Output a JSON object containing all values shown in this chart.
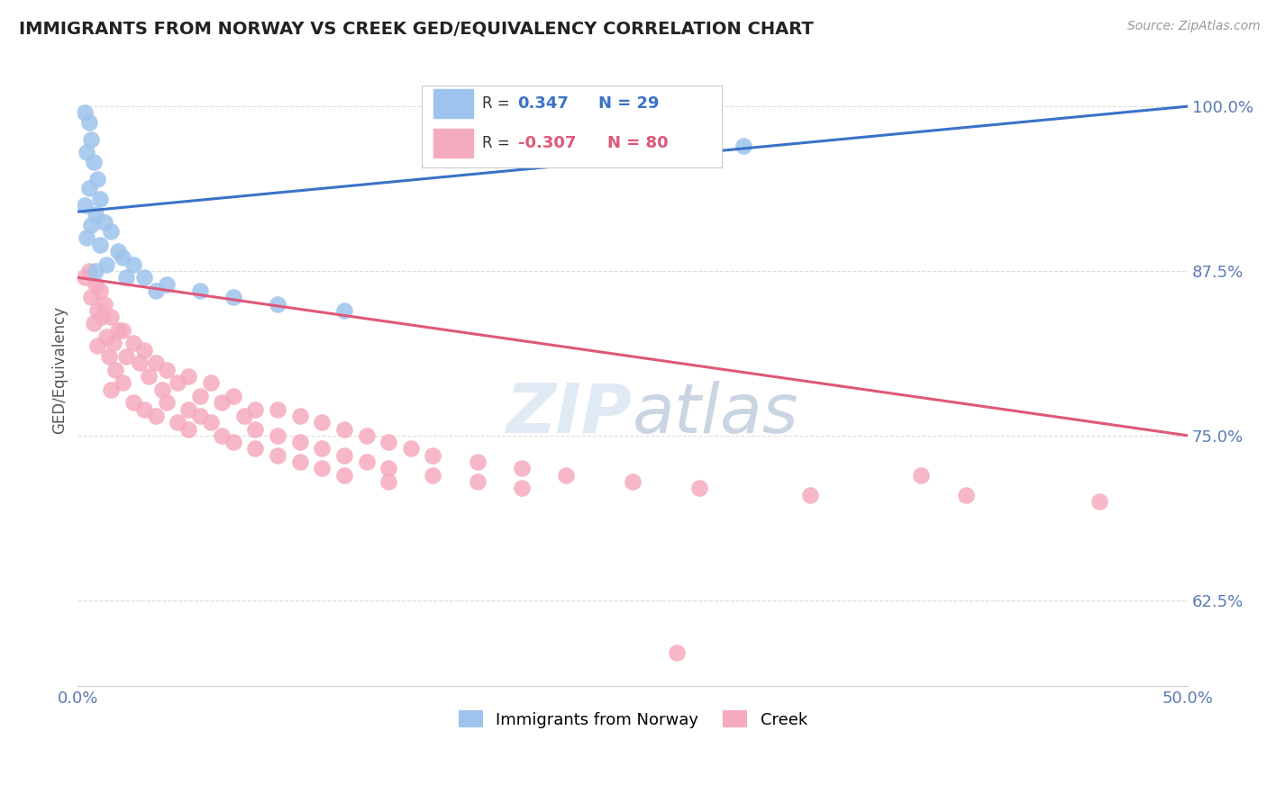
{
  "title": "IMMIGRANTS FROM NORWAY VS CREEK GED/EQUIVALENCY CORRELATION CHART",
  "source": "Source: ZipAtlas.com",
  "ylabel": "GED/Equivalency",
  "xlim": [
    0.0,
    50.0
  ],
  "ylim": [
    56.0,
    104.0
  ],
  "yticks": [
    62.5,
    75.0,
    87.5,
    100.0
  ],
  "ytick_labels": [
    "62.5%",
    "75.0%",
    "87.5%",
    "100.0%"
  ],
  "legend_r_norway": "0.347",
  "legend_n_norway": "29",
  "legend_r_creek": "-0.307",
  "legend_n_creek": "80",
  "norway_color": "#9ec4ed",
  "creek_color": "#f5abbe",
  "norway_line_color": "#3a72c8",
  "creek_line_color": "#e05878",
  "title_color": "#222222",
  "axis_label_color": "#5a7ab5",
  "norway_points": [
    [
      0.3,
      99.5
    ],
    [
      0.5,
      98.8
    ],
    [
      0.6,
      97.5
    ],
    [
      0.4,
      96.5
    ],
    [
      0.7,
      95.8
    ],
    [
      0.9,
      94.5
    ],
    [
      0.5,
      93.8
    ],
    [
      1.0,
      93.0
    ],
    [
      0.3,
      92.5
    ],
    [
      0.8,
      91.8
    ],
    [
      1.2,
      91.2
    ],
    [
      0.6,
      91.0
    ],
    [
      1.5,
      90.5
    ],
    [
      0.4,
      90.0
    ],
    [
      1.0,
      89.5
    ],
    [
      1.8,
      89.0
    ],
    [
      2.0,
      88.5
    ],
    [
      1.3,
      88.0
    ],
    [
      2.5,
      88.0
    ],
    [
      0.8,
      87.5
    ],
    [
      3.0,
      87.0
    ],
    [
      2.2,
      87.0
    ],
    [
      4.0,
      86.5
    ],
    [
      3.5,
      86.0
    ],
    [
      5.5,
      86.0
    ],
    [
      7.0,
      85.5
    ],
    [
      9.0,
      85.0
    ],
    [
      12.0,
      84.5
    ],
    [
      30.0,
      97.0
    ]
  ],
  "creek_points": [
    [
      0.5,
      87.5
    ],
    [
      0.3,
      87.0
    ],
    [
      0.8,
      86.5
    ],
    [
      1.0,
      86.0
    ],
    [
      0.6,
      85.5
    ],
    [
      1.2,
      85.0
    ],
    [
      0.9,
      84.5
    ],
    [
      1.5,
      84.0
    ],
    [
      1.1,
      84.0
    ],
    [
      0.7,
      83.5
    ],
    [
      1.8,
      83.0
    ],
    [
      2.0,
      83.0
    ],
    [
      1.3,
      82.5
    ],
    [
      2.5,
      82.0
    ],
    [
      1.6,
      82.0
    ],
    [
      0.9,
      81.8
    ],
    [
      3.0,
      81.5
    ],
    [
      2.2,
      81.0
    ],
    [
      1.4,
      81.0
    ],
    [
      3.5,
      80.5
    ],
    [
      2.8,
      80.5
    ],
    [
      4.0,
      80.0
    ],
    [
      1.7,
      80.0
    ],
    [
      5.0,
      79.5
    ],
    [
      3.2,
      79.5
    ],
    [
      2.0,
      79.0
    ],
    [
      4.5,
      79.0
    ],
    [
      6.0,
      79.0
    ],
    [
      1.5,
      78.5
    ],
    [
      3.8,
      78.5
    ],
    [
      5.5,
      78.0
    ],
    [
      7.0,
      78.0
    ],
    [
      2.5,
      77.5
    ],
    [
      4.0,
      77.5
    ],
    [
      6.5,
      77.5
    ],
    [
      8.0,
      77.0
    ],
    [
      3.0,
      77.0
    ],
    [
      5.0,
      77.0
    ],
    [
      9.0,
      77.0
    ],
    [
      3.5,
      76.5
    ],
    [
      5.5,
      76.5
    ],
    [
      7.5,
      76.5
    ],
    [
      10.0,
      76.5
    ],
    [
      4.5,
      76.0
    ],
    [
      6.0,
      76.0
    ],
    [
      11.0,
      76.0
    ],
    [
      5.0,
      75.5
    ],
    [
      8.0,
      75.5
    ],
    [
      12.0,
      75.5
    ],
    [
      6.5,
      75.0
    ],
    [
      9.0,
      75.0
    ],
    [
      13.0,
      75.0
    ],
    [
      7.0,
      74.5
    ],
    [
      10.0,
      74.5
    ],
    [
      14.0,
      74.5
    ],
    [
      8.0,
      74.0
    ],
    [
      11.0,
      74.0
    ],
    [
      15.0,
      74.0
    ],
    [
      9.0,
      73.5
    ],
    [
      12.0,
      73.5
    ],
    [
      16.0,
      73.5
    ],
    [
      10.0,
      73.0
    ],
    [
      13.0,
      73.0
    ],
    [
      18.0,
      73.0
    ],
    [
      11.0,
      72.5
    ],
    [
      14.0,
      72.5
    ],
    [
      20.0,
      72.5
    ],
    [
      12.0,
      72.0
    ],
    [
      16.0,
      72.0
    ],
    [
      22.0,
      72.0
    ],
    [
      14.0,
      71.5
    ],
    [
      18.0,
      71.5
    ],
    [
      25.0,
      71.5
    ],
    [
      20.0,
      71.0
    ],
    [
      28.0,
      71.0
    ],
    [
      33.0,
      70.5
    ],
    [
      40.0,
      70.5
    ],
    [
      46.0,
      70.0
    ],
    [
      27.0,
      58.5
    ],
    [
      38.0,
      72.0
    ]
  ]
}
